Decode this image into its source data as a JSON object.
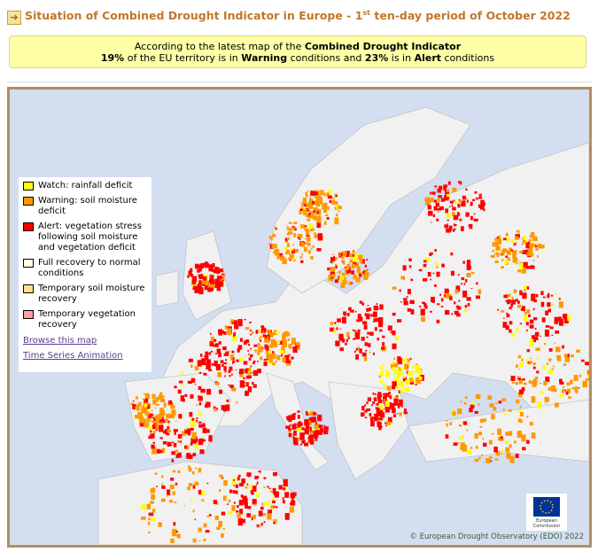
{
  "header": {
    "title_parts": [
      "Situation of Combined Drought Indicator in Europe - 1",
      "st",
      " ten-day period of October 2022"
    ]
  },
  "summary": {
    "line1": [
      "According to the latest map of the ",
      "Combined Drought Indicator"
    ],
    "line2": [
      "19%",
      " of the EU territory is in ",
      "Warning",
      " conditions and ",
      "23%",
      " is in ",
      "Alert",
      " conditions"
    ]
  },
  "legend": {
    "items": [
      {
        "label": "Watch: rainfall deficit",
        "color": "#ffff00"
      },
      {
        "label": "Warning: soil moisture deficit",
        "color": "#ff9900"
      },
      {
        "label": "Alert: vegetation stress following soil moisture and vegetation deficit",
        "color": "#ff0000"
      },
      {
        "label": "Full recovery to normal conditions",
        "color": "#ffffe0"
      },
      {
        "label": "Temporary soil moisture recovery",
        "color": "#ffe08a"
      },
      {
        "label": "Temporary vegetation recovery",
        "color": "#ff9f9f"
      }
    ],
    "links": [
      "Browse this map",
      "Time Series Animation"
    ]
  },
  "map": {
    "logo_text": "European Commission",
    "copyright": "© European Drought Observatory (EDO) 2022"
  }
}
